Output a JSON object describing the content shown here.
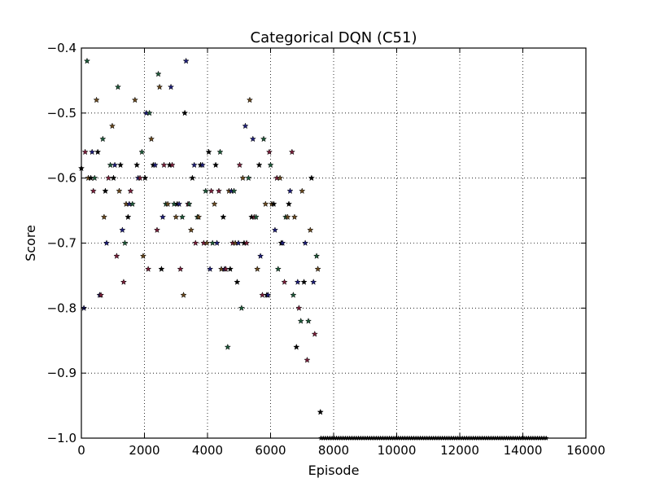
{
  "chart_data": {
    "type": "scatter",
    "title": "Categorical DQN (C51)",
    "xlabel": "Episode",
    "ylabel": "Score",
    "xlim": [
      0,
      16000
    ],
    "ylim": [
      -1.0,
      -0.4
    ],
    "xticks": [
      0,
      2000,
      4000,
      6000,
      8000,
      10000,
      12000,
      14000,
      16000
    ],
    "yticks": [
      -1.0,
      -0.9,
      -0.8,
      -0.7,
      -0.6,
      -0.5,
      -0.4
    ],
    "xtick_labels": [
      "0",
      "2000",
      "4000",
      "6000",
      "8000",
      "10000",
      "12000",
      "14000",
      "16000"
    ],
    "ytick_labels": [
      "−1.0",
      "−0.9",
      "−0.8",
      "−0.7",
      "−0.6",
      "−0.5",
      "−0.4"
    ],
    "grid": true,
    "marker": "star",
    "colors": [
      "#000000",
      "#1f1f7a",
      "#7a1f3a",
      "#1f5a3a",
      "#6b4a1f"
    ],
    "points": [
      [
        0,
        -0.585
      ],
      [
        80,
        -0.8
      ],
      [
        120,
        -0.56
      ],
      [
        180,
        -0.42
      ],
      [
        220,
        -0.6
      ],
      [
        300,
        -0.6
      ],
      [
        340,
        -0.56
      ],
      [
        380,
        -0.62
      ],
      [
        420,
        -0.6
      ],
      [
        480,
        -0.48
      ],
      [
        520,
        -0.56
      ],
      [
        580,
        -0.78
      ],
      [
        620,
        -0.78
      ],
      [
        680,
        -0.54
      ],
      [
        720,
        -0.66
      ],
      [
        760,
        -0.62
      ],
      [
        800,
        -0.7
      ],
      [
        860,
        -0.6
      ],
      [
        920,
        -0.58
      ],
      [
        980,
        -0.52
      ],
      [
        1020,
        -0.6
      ],
      [
        1060,
        -0.58
      ],
      [
        1120,
        -0.72
      ],
      [
        1160,
        -0.46
      ],
      [
        1200,
        -0.62
      ],
      [
        1240,
        -0.58
      ],
      [
        1300,
        -0.68
      ],
      [
        1340,
        -0.76
      ],
      [
        1380,
        -0.7
      ],
      [
        1420,
        -0.64
      ],
      [
        1480,
        -0.66
      ],
      [
        1520,
        -0.64
      ],
      [
        1560,
        -0.62
      ],
      [
        1620,
        -0.64
      ],
      [
        1700,
        -0.48
      ],
      [
        1760,
        -0.58
      ],
      [
        1800,
        -0.6
      ],
      [
        1860,
        -0.6
      ],
      [
        1920,
        -0.56
      ],
      [
        1960,
        -0.72
      ],
      [
        2020,
        -0.6
      ],
      [
        2060,
        -0.5
      ],
      [
        2120,
        -0.74
      ],
      [
        2160,
        -0.5
      ],
      [
        2220,
        -0.54
      ],
      [
        2280,
        -0.58
      ],
      [
        2340,
        -0.58
      ],
      [
        2400,
        -0.68
      ],
      [
        2440,
        -0.44
      ],
      [
        2480,
        -0.46
      ],
      [
        2540,
        -0.74
      ],
      [
        2580,
        -0.66
      ],
      [
        2620,
        -0.58
      ],
      [
        2680,
        -0.64
      ],
      [
        2740,
        -0.64
      ],
      [
        2800,
        -0.58
      ],
      [
        2840,
        -0.46
      ],
      [
        2880,
        -0.58
      ],
      [
        2940,
        -0.64
      ],
      [
        3000,
        -0.66
      ],
      [
        3040,
        -0.64
      ],
      [
        3100,
        -0.64
      ],
      [
        3140,
        -0.74
      ],
      [
        3200,
        -0.66
      ],
      [
        3240,
        -0.78
      ],
      [
        3280,
        -0.5
      ],
      [
        3320,
        -0.42
      ],
      [
        3380,
        -0.64
      ],
      [
        3420,
        -0.64
      ],
      [
        3480,
        -0.68
      ],
      [
        3520,
        -0.6
      ],
      [
        3580,
        -0.58
      ],
      [
        3620,
        -0.7
      ],
      [
        3680,
        -0.66
      ],
      [
        3720,
        -0.66
      ],
      [
        3780,
        -0.58
      ],
      [
        3840,
        -0.58
      ],
      [
        3880,
        -0.7
      ],
      [
        3940,
        -0.62
      ],
      [
        3980,
        -0.7
      ],
      [
        4040,
        -0.56
      ],
      [
        4080,
        -0.74
      ],
      [
        4120,
        -0.62
      ],
      [
        4160,
        -0.7
      ],
      [
        4220,
        -0.64
      ],
      [
        4260,
        -0.58
      ],
      [
        4300,
        -0.7
      ],
      [
        4360,
        -0.62
      ],
      [
        4400,
        -0.56
      ],
      [
        4440,
        -0.74
      ],
      [
        4500,
        -0.66
      ],
      [
        4540,
        -0.74
      ],
      [
        4580,
        -0.74
      ],
      [
        4640,
        -0.86
      ],
      [
        4680,
        -0.62
      ],
      [
        4720,
        -0.74
      ],
      [
        4760,
        -0.62
      ],
      [
        4800,
        -0.7
      ],
      [
        4840,
        -0.62
      ],
      [
        4880,
        -0.7
      ],
      [
        4940,
        -0.76
      ],
      [
        4980,
        -0.7
      ],
      [
        5020,
        -0.58
      ],
      [
        5080,
        -0.8
      ],
      [
        5120,
        -0.6
      ],
      [
        5160,
        -0.7
      ],
      [
        5200,
        -0.52
      ],
      [
        5240,
        -0.7
      ],
      [
        5300,
        -0.6
      ],
      [
        5340,
        -0.48
      ],
      [
        5400,
        -0.66
      ],
      [
        5440,
        -0.54
      ],
      [
        5480,
        -0.66
      ],
      [
        5540,
        -0.66
      ],
      [
        5580,
        -0.74
      ],
      [
        5640,
        -0.58
      ],
      [
        5680,
        -0.72
      ],
      [
        5740,
        -0.78
      ],
      [
        5780,
        -0.54
      ],
      [
        5840,
        -0.64
      ],
      [
        5880,
        -0.78
      ],
      [
        5920,
        -0.78
      ],
      [
        5960,
        -0.56
      ],
      [
        6000,
        -0.58
      ],
      [
        6040,
        -0.64
      ],
      [
        6100,
        -0.64
      ],
      [
        6140,
        -0.68
      ],
      [
        6200,
        -0.6
      ],
      [
        6240,
        -0.74
      ],
      [
        6300,
        -0.6
      ],
      [
        6340,
        -0.7
      ],
      [
        6380,
        -0.7
      ],
      [
        6440,
        -0.76
      ],
      [
        6480,
        -0.66
      ],
      [
        6540,
        -0.66
      ],
      [
        6580,
        -0.64
      ],
      [
        6620,
        -0.62
      ],
      [
        6680,
        -0.56
      ],
      [
        6720,
        -0.78
      ],
      [
        6760,
        -0.66
      ],
      [
        6820,
        -0.86
      ],
      [
        6860,
        -0.76
      ],
      [
        6900,
        -0.8
      ],
      [
        6960,
        -0.82
      ],
      [
        7000,
        -0.62
      ],
      [
        7060,
        -0.76
      ],
      [
        7100,
        -0.7
      ],
      [
        7160,
        -0.88
      ],
      [
        7200,
        -0.82
      ],
      [
        7260,
        -0.68
      ],
      [
        7300,
        -0.6
      ],
      [
        7360,
        -0.76
      ],
      [
        7400,
        -0.84
      ],
      [
        7460,
        -0.72
      ],
      [
        7500,
        -0.74
      ],
      [
        7580,
        -0.96
      ]
    ],
    "flat_series": {
      "x_start": 7600,
      "x_end": 14800,
      "x_step": 70,
      "y": -1.0
    }
  }
}
